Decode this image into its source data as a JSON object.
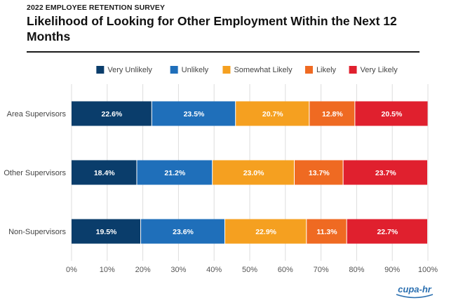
{
  "header": {
    "survey_label": "2022 EMPLOYEE RETENTION SURVEY",
    "title": "Likelihood of Looking for Other Employment Within the Next 12 Months"
  },
  "logo_text": "cupa-hr",
  "colors": {
    "very_unlikely": "#0a3d6b",
    "unlikely": "#1f6fba",
    "somewhat_likely": "#f5a020",
    "likely": "#ef6a22",
    "very_likely": "#e0202e",
    "grid": "#dddddd",
    "logo": "#2a6fb0"
  },
  "chart_data": {
    "type": "bar",
    "orientation": "horizontal",
    "stacked": true,
    "categories": [
      "Area Supervisors",
      "Other Supervisors",
      "Non-Supervisors"
    ],
    "series": [
      {
        "name": "Very Unlikely",
        "color": "#0a3d6b",
        "values": [
          22.6,
          18.4,
          19.5
        ],
        "labels": [
          "22.6%",
          "18.4%",
          "19.5%"
        ]
      },
      {
        "name": "Unlikely",
        "color": "#1f6fba",
        "values": [
          23.5,
          21.2,
          23.6
        ],
        "labels": [
          "23.5%",
          "21.2%",
          "23.6%"
        ]
      },
      {
        "name": "Somewhat Likely",
        "color": "#f5a020",
        "values": [
          20.7,
          23.0,
          22.9
        ],
        "labels": [
          "20.7%",
          "23.0%",
          "22.9%"
        ]
      },
      {
        "name": "Likely",
        "color": "#ef6a22",
        "values": [
          12.8,
          13.7,
          11.3
        ],
        "labels": [
          "12.8%",
          "13.7%",
          "11.3%"
        ]
      },
      {
        "name": "Very Likely",
        "color": "#e0202e",
        "values": [
          20.5,
          23.7,
          22.7
        ],
        "labels": [
          "20.5%",
          "23.7%",
          "22.7%"
        ]
      }
    ],
    "x_ticks": [
      "0%",
      "10%",
      "20%",
      "30%",
      "40%",
      "50%",
      "60%",
      "70%",
      "80%",
      "90%",
      "100%"
    ],
    "xlim": [
      0,
      100
    ],
    "grid": true,
    "legend_position": "top"
  }
}
